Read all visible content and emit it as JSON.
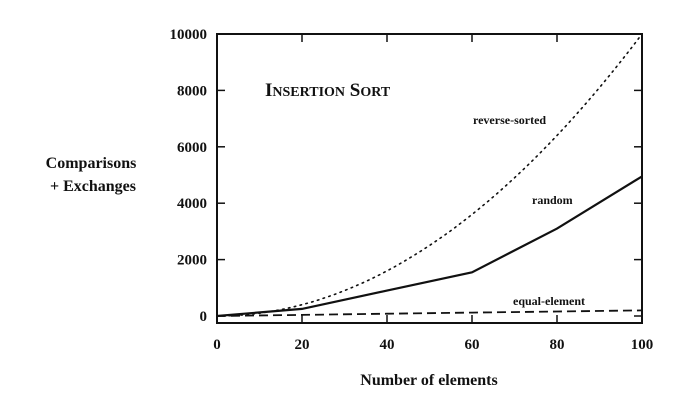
{
  "chart_data": {
    "type": "line",
    "title": "Insertion Sort",
    "xlabel": "Number of elements",
    "ylabel": [
      "Comparisons",
      "+ Exchanges"
    ],
    "xlim": [
      0,
      100
    ],
    "ylim": [
      0,
      10000
    ],
    "x_ticks": [
      0,
      20,
      40,
      60,
      80,
      100
    ],
    "y_ticks": [
      0,
      2000,
      4000,
      6000,
      8000,
      10000
    ],
    "grid": false,
    "legend": "none",
    "series": [
      {
        "name": "reverse-sorted",
        "line_style": "dotted",
        "x": [
          0,
          20,
          40,
          60,
          80,
          100
        ],
        "y": [
          0,
          400,
          1600,
          3600,
          6400,
          10000
        ]
      },
      {
        "name": "random",
        "line_style": "solid",
        "x": [
          0,
          20,
          40,
          60,
          80,
          100
        ],
        "y": [
          0,
          250,
          900,
          1550,
          3100,
          4950
        ]
      },
      {
        "name": "equal-element",
        "line_style": "dashed",
        "x": [
          0,
          20,
          40,
          60,
          80,
          100
        ],
        "y": [
          0,
          40,
          80,
          120,
          160,
          200
        ]
      }
    ]
  }
}
